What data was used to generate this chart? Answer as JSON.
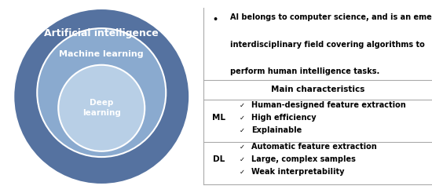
{
  "fig_width": 5.5,
  "fig_height": 2.46,
  "dpi": 100,
  "background_color": "#ffffff",
  "ai_color": "#5572a0",
  "ml_color": "#8aaacf",
  "dl_color": "#b8cfe6",
  "bullet_text_line1": "AI belongs to computer science, and is an emerging",
  "bullet_text_line2": "interdisciplinary field covering algorithms to",
  "bullet_text_line3": "perform human intelligence tasks.",
  "table_header": "Main characteristics",
  "ml_items": [
    "Human-designed feature extraction",
    "High efficiency",
    "Explainable"
  ],
  "dl_items": [
    "Automatic feature extraction",
    "Large, complex samples",
    "Weak interpretability"
  ],
  "check": "✓"
}
